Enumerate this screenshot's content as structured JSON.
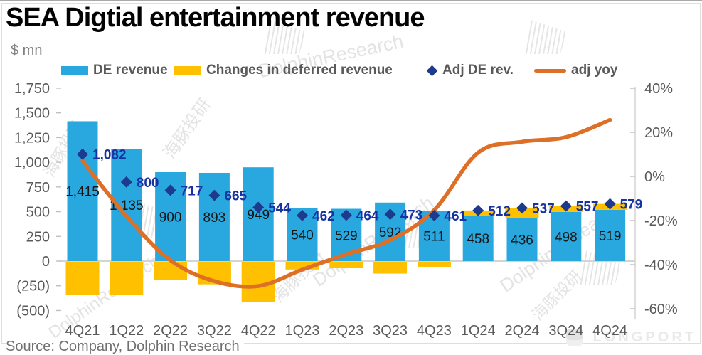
{
  "header": {
    "title": "SEA Digtial entertainment revenue",
    "units_label": "$ mn"
  },
  "footer": {
    "source": "Source: Company, Dolphin Research"
  },
  "watermark": {
    "cn": "海豚投研",
    "en": "DolphinResearch",
    "brand": "LONGPORT"
  },
  "chart_data": {
    "type": "combo",
    "legend_position": "top",
    "gridlines": "zero-line-only",
    "categories": [
      "4Q21",
      "1Q22",
      "2Q22",
      "3Q22",
      "4Q22",
      "1Q23",
      "2Q23",
      "3Q23",
      "4Q23",
      "1Q24",
      "2Q24",
      "3Q24",
      "4Q24"
    ],
    "series": [
      {
        "name": "DE revenue",
        "type": "bar",
        "axis": "left",
        "color": "#29A8E0",
        "values": [
          1415,
          1135,
          900,
          893,
          949,
          540,
          529,
          592,
          511,
          458,
          436,
          498,
          519
        ],
        "labels": [
          "1,415",
          "1,135",
          "900",
          "893",
          "949",
          "540",
          "529",
          "592",
          "511",
          "458",
          "436",
          "498",
          "519"
        ],
        "label_color": "#161616"
      },
      {
        "name": "Changes in deferred revenue",
        "type": "bar",
        "axis": "left",
        "stacked_on": "DE revenue",
        "color": "#FFC000",
        "values": [
          -333,
          -335,
          -183,
          -228,
          -405,
          -78,
          -65,
          -119,
          -50,
          54,
          101,
          59,
          60
        ]
      },
      {
        "name": "Adj DE rev.",
        "type": "scatter",
        "marker": "diamond",
        "axis": "left",
        "color": "#1E3A8C",
        "values": [
          1082,
          800,
          717,
          665,
          544,
          462,
          464,
          473,
          461,
          512,
          537,
          557,
          579
        ],
        "labels": [
          "1,082",
          "800",
          "717",
          "665",
          "544",
          "462",
          "464",
          "473",
          "461",
          "512",
          "537",
          "557",
          "579"
        ],
        "label_color": "#1733A3"
      },
      {
        "name": "adj yoy",
        "type": "line",
        "smooth": true,
        "axis": "right",
        "color": "#DD7026",
        "values": [
          7,
          -18,
          -38,
          -47.5,
          -49.7,
          -42.3,
          -35.3,
          -28.9,
          -15.3,
          10.8,
          15.7,
          17.8,
          25.6
        ]
      }
    ],
    "left_axis": {
      "title": "$ mn",
      "min": -500,
      "max": 1750,
      "step": 250,
      "ticks": [
        {
          "value": 1750,
          "label": "1,750"
        },
        {
          "value": 1500,
          "label": "1,500"
        },
        {
          "value": 1250,
          "label": "1,250"
        },
        {
          "value": 1000,
          "label": "1,000"
        },
        {
          "value": 750,
          "label": "750"
        },
        {
          "value": 500,
          "label": "500"
        },
        {
          "value": 250,
          "label": "250"
        },
        {
          "value": 0,
          "label": "0"
        },
        {
          "value": -250,
          "label": "(250)"
        },
        {
          "value": -500,
          "label": "(500)"
        }
      ]
    },
    "right_axis": {
      "min": -60,
      "max": 40,
      "step": 20,
      "ticks": [
        {
          "value": 40,
          "label": "40%"
        },
        {
          "value": 20,
          "label": "20%"
        },
        {
          "value": 0,
          "label": "0%"
        },
        {
          "value": -20,
          "label": "-20%"
        },
        {
          "value": -40,
          "label": "-40%"
        },
        {
          "value": -60,
          "label": "-60%"
        }
      ]
    }
  }
}
